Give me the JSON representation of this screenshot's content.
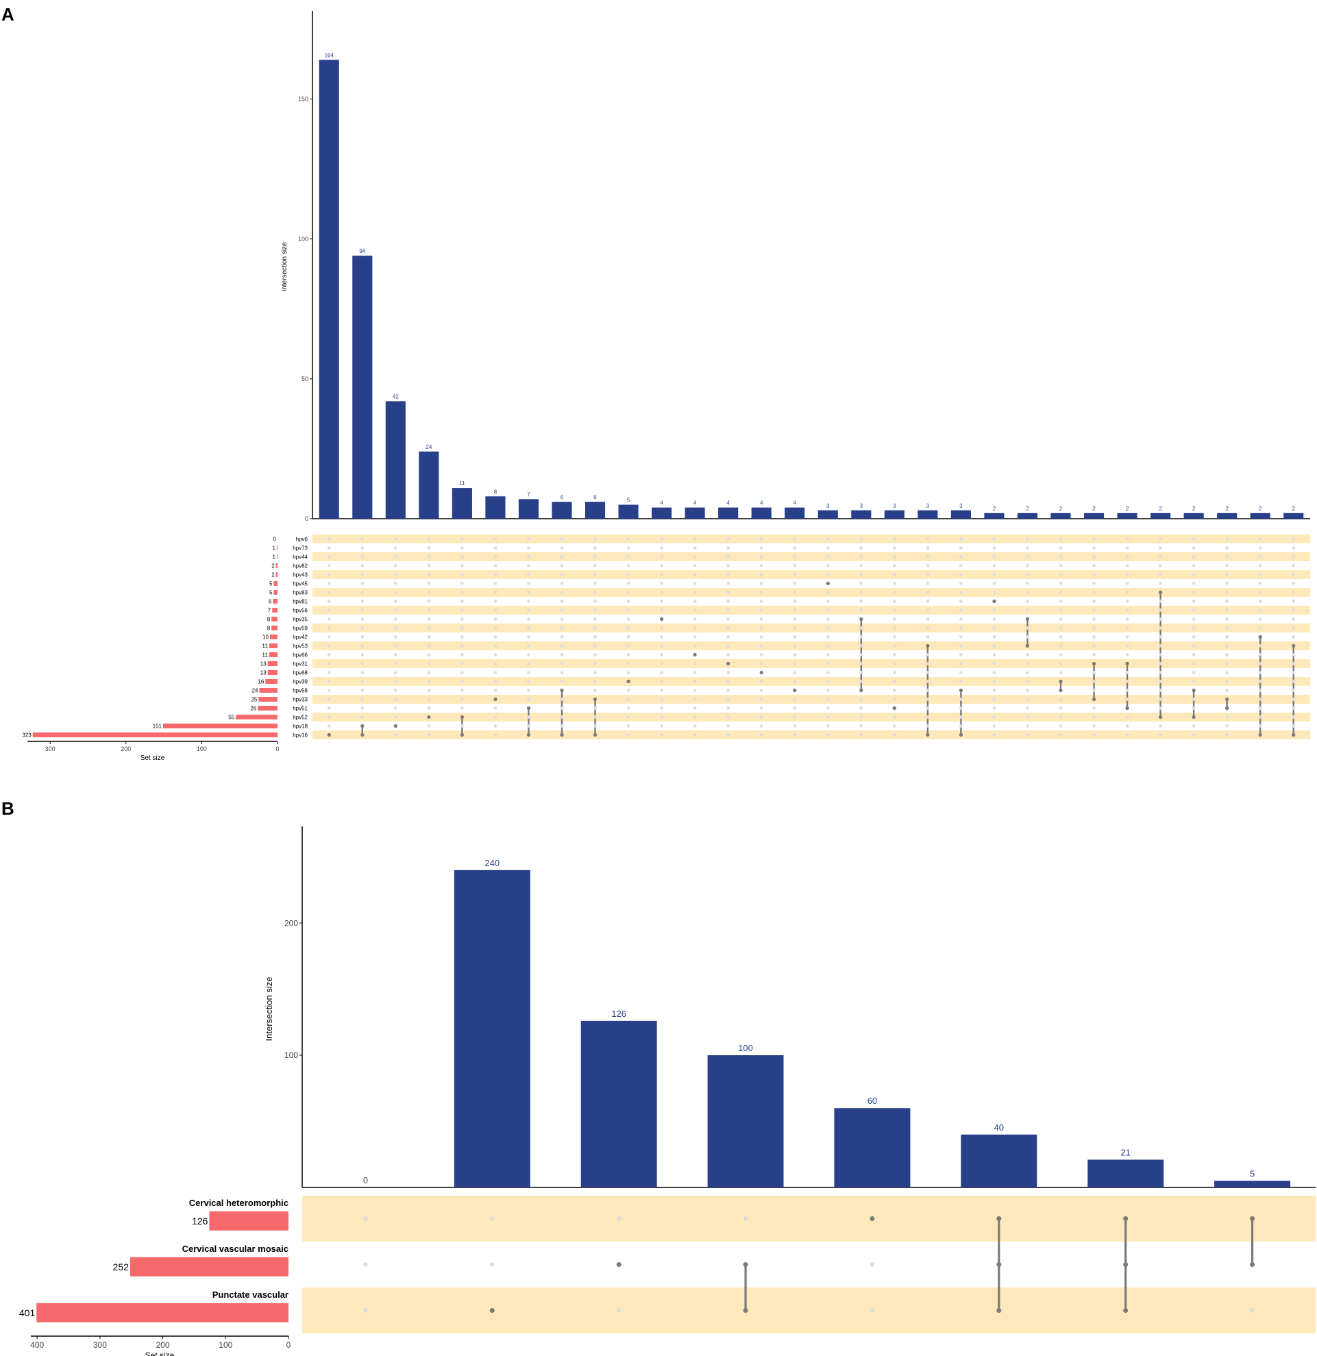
{
  "panels": {
    "A": {
      "letter": "A"
    },
    "B": {
      "letter": "B"
    }
  },
  "colors": {
    "bar": "#283f8a",
    "bar_label": "#283f8a",
    "set_bar": "#f8696b",
    "stripe": "#ffe8ba",
    "dot_inactive": "#dddddd",
    "dot_active": "#7a7a7a",
    "axis": "#000000"
  },
  "chart_data": [
    {
      "panel": "A",
      "type": "bar",
      "subtype": "upset",
      "ylabel": "Intersection size",
      "xlabel_sets": "Set size",
      "y_ticks": [
        0,
        50,
        100,
        150
      ],
      "ylim": [
        0,
        180
      ],
      "set_ticks": [
        300,
        200,
        100,
        0
      ],
      "set_xlim": [
        330,
        0
      ],
      "intersection_values": [
        164,
        94,
        42,
        24,
        11,
        8,
        7,
        6,
        6,
        5,
        4,
        4,
        4,
        4,
        4,
        3,
        3,
        3,
        3,
        3,
        2,
        2,
        2,
        2,
        2,
        2,
        2,
        2,
        2,
        2
      ],
      "intersection_labels": [
        "164",
        "94",
        "42",
        "24",
        "11",
        "8",
        "7",
        "6",
        "6",
        "5",
        "4",
        "4",
        "4",
        "4",
        "4",
        "3",
        "3",
        "3",
        "3",
        "3",
        "2",
        "2",
        "2",
        "2",
        "2",
        "2",
        "2",
        "2",
        "2",
        "2"
      ],
      "sets": [
        "hpv6",
        "hpv73",
        "hpv44",
        "hpv82",
        "hpv43",
        "hpv45",
        "hpv83",
        "hpv81",
        "hpv56",
        "hpv35",
        "hpv59",
        "hpv42",
        "hpv53",
        "hpv66",
        "hpv31",
        "hpv68",
        "hpv39",
        "hpv58",
        "hpv33",
        "hpv51",
        "hpv52",
        "hpv18",
        "hpv16"
      ],
      "set_sizes": [
        0,
        1,
        1,
        2,
        2,
        5,
        5,
        6,
        7,
        8,
        8,
        10,
        11,
        11,
        13,
        13,
        16,
        24,
        25,
        26,
        55,
        151,
        323
      ],
      "set_size_labels": [
        "0",
        "1",
        "1",
        "2",
        "2",
        "5",
        "5",
        "6",
        "7",
        "8",
        "8",
        "10",
        "11",
        "11",
        "13",
        "13",
        "16",
        "24",
        "25",
        "26",
        "55",
        "151",
        "323"
      ],
      "combinations": [
        [
          "hpv16"
        ],
        [
          "hpv16",
          "hpv18"
        ],
        [
          "hpv18"
        ],
        [
          "hpv52"
        ],
        [
          "hpv16",
          "hpv52"
        ],
        [
          "hpv33"
        ],
        [
          "hpv16",
          "hpv51"
        ],
        [
          "hpv16",
          "hpv58"
        ],
        [
          "hpv16",
          "hpv33"
        ],
        [
          "hpv39"
        ],
        [
          "hpv35"
        ],
        [
          "hpv66"
        ],
        [
          "hpv31"
        ],
        [
          "hpv68"
        ],
        [
          "hpv58"
        ],
        [
          "hpv45"
        ],
        [
          "hpv35",
          "hpv58"
        ],
        [
          "hpv51"
        ],
        [
          "hpv16",
          "hpv53"
        ],
        [
          "hpv16",
          "hpv58"
        ],
        [
          "hpv81"
        ],
        [
          "hpv35",
          "hpv53"
        ],
        [
          "hpv39",
          "hpv58"
        ],
        [
          "hpv31",
          "hpv33"
        ],
        [
          "hpv31",
          "hpv51"
        ],
        [
          "hpv52",
          "hpv83"
        ],
        [
          "hpv52",
          "hpv58"
        ],
        [
          "hpv33",
          "hpv51"
        ],
        [
          "hpv16",
          "hpv42"
        ],
        [
          "hpv16",
          "hpv53"
        ]
      ]
    },
    {
      "panel": "B",
      "type": "bar",
      "subtype": "upset",
      "ylabel": "Intersection size",
      "xlabel_sets": "Set size",
      "y_ticks": [
        100,
        200
      ],
      "ylim": [
        0,
        270
      ],
      "set_ticks": [
        400,
        300,
        200,
        100,
        0
      ],
      "set_xlim": [
        410,
        0
      ],
      "intersection_values": [
        0,
        240,
        126,
        100,
        60,
        40,
        21,
        5
      ],
      "intersection_labels": [
        "0",
        "240",
        "126",
        "100",
        "60",
        "40",
        "21",
        "5"
      ],
      "sets": [
        "Cervical heteromorphic",
        "Cervical vascular mosaic",
        "Punctate vascular"
      ],
      "set_sizes": [
        126,
        252,
        401
      ],
      "set_size_labels": [
        "126",
        "252",
        "401"
      ],
      "combinations": [
        [],
        [
          "Punctate vascular"
        ],
        [
          "Cervical vascular mosaic"
        ],
        [
          "Cervical vascular mosaic",
          "Punctate vascular"
        ],
        [
          "Cervical heteromorphic"
        ],
        [
          "Cervical heteromorphic",
          "Cervical vascular mosaic",
          "Punctate vascular"
        ],
        [
          "Cervical heteromorphic",
          "Cervical vascular mosaic",
          "Punctate vascular"
        ],
        [
          "Cervical heteromorphic",
          "Cervical vascular mosaic"
        ]
      ]
    }
  ]
}
